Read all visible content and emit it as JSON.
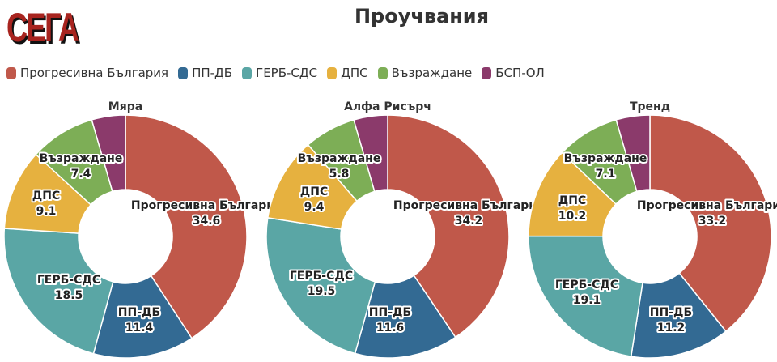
{
  "logo": "СЕГА",
  "title": "Проучвания",
  "colors": {
    "Прогресивна България": "#c0584a",
    "ПП-ДБ": "#336a93",
    "ГЕРБ-СДС": "#5aa6a5",
    "ДПС": "#e6b13f",
    "Възраждане": "#7dae56",
    "БСП-ОЛ": "#8b3a6b"
  },
  "legend": [
    "Прогресивна България",
    "ПП-ДБ",
    "ГЕРБ-СДС",
    "ДПС",
    "Възраждане",
    "БСП-ОЛ"
  ],
  "chart_data": [
    {
      "type": "pie",
      "title": "Мяра",
      "categories": [
        "Прогресивна България",
        "ПП-ДБ",
        "ГЕРБ-СДС",
        "ДПС",
        "Възраждане",
        "БСП-ОЛ"
      ],
      "values": [
        34.6,
        11.4,
        18.5,
        9.1,
        7.4,
        3.8
      ]
    },
    {
      "type": "pie",
      "title": "Алфа Рисърч",
      "categories": [
        "Прогресивна България",
        "ПП-ДБ",
        "ГЕРБ-СДС",
        "ДПС",
        "Възраждане",
        "БСП-ОЛ"
      ],
      "values": [
        34.2,
        11.6,
        19.5,
        9.4,
        5.8,
        3.8
      ]
    },
    {
      "type": "pie",
      "title": "Тренд",
      "categories": [
        "Прогресивна България",
        "ПП-ДБ",
        "ГЕРБ-СДС",
        "ДПС",
        "Възраждане",
        "БСП-ОЛ"
      ],
      "values": [
        33.2,
        11.2,
        19.1,
        10.2,
        7.1,
        3.8
      ]
    }
  ]
}
